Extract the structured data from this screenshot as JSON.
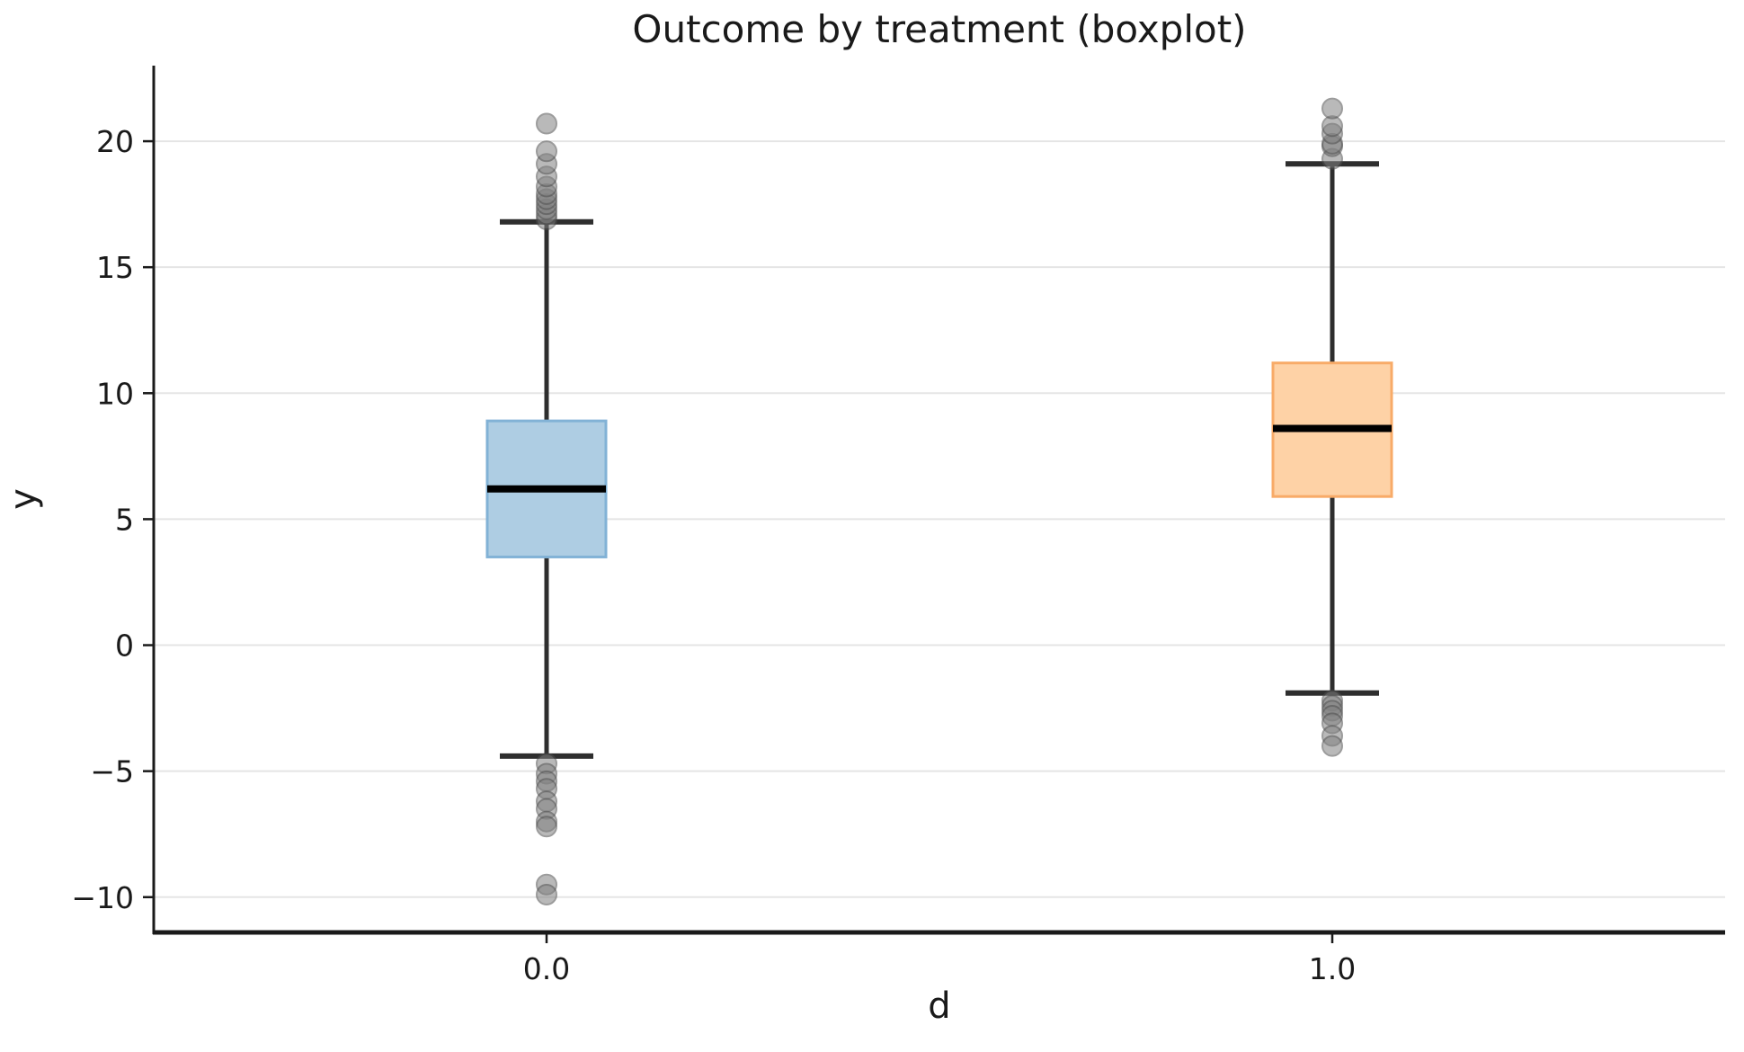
{
  "figure": {
    "background": "#ffffff"
  },
  "chart_data": {
    "type": "boxplot",
    "title": "Outcome by treatment (boxplot)",
    "xlabel": "d",
    "ylabel": "y",
    "categories": [
      "0.0",
      "1.0"
    ],
    "yticks": [
      -10,
      -5,
      0,
      5,
      10,
      15,
      20
    ],
    "ylim": [
      -11.4,
      23.0
    ],
    "grid": "horizontal-only",
    "gridline_color": "#e5e5e5",
    "spine_color": "#1a1a1a",
    "median_color": "#000000",
    "whisker_color": "#2e2e2e",
    "outlier_style": {
      "fill": "#808080",
      "stroke": "#4d4d4d",
      "opacity": 0.55,
      "radius": 11
    },
    "groups": [
      {
        "label": "0.0",
        "box_color": "#aecde3",
        "edge_color": "#82b2d6",
        "q1": 3.5,
        "median": 6.2,
        "q3": 8.9,
        "whisker_low": -4.4,
        "whisker_high": 16.8,
        "outliers_high": [
          16.9,
          17.1,
          17.3,
          17.5,
          17.7,
          17.9,
          18.2,
          18.6,
          19.1,
          19.6,
          20.7
        ],
        "outliers_low": [
          -4.7,
          -5.1,
          -5.4,
          -5.7,
          -6.2,
          -6.5,
          -7.0,
          -7.2,
          -9.5,
          -9.9
        ]
      },
      {
        "label": "1.0",
        "box_color": "#fed2a6",
        "edge_color": "#f8ab68",
        "q1": 5.9,
        "median": 8.6,
        "q3": 11.2,
        "whisker_low": -1.9,
        "whisker_high": 19.1,
        "outliers_high": [
          19.3,
          19.8,
          19.9,
          20.3,
          20.6,
          21.3
        ],
        "outliers_low": [
          -2.2,
          -2.4,
          -2.6,
          -2.8,
          -3.1,
          -3.6,
          -4.0
        ]
      }
    ]
  }
}
